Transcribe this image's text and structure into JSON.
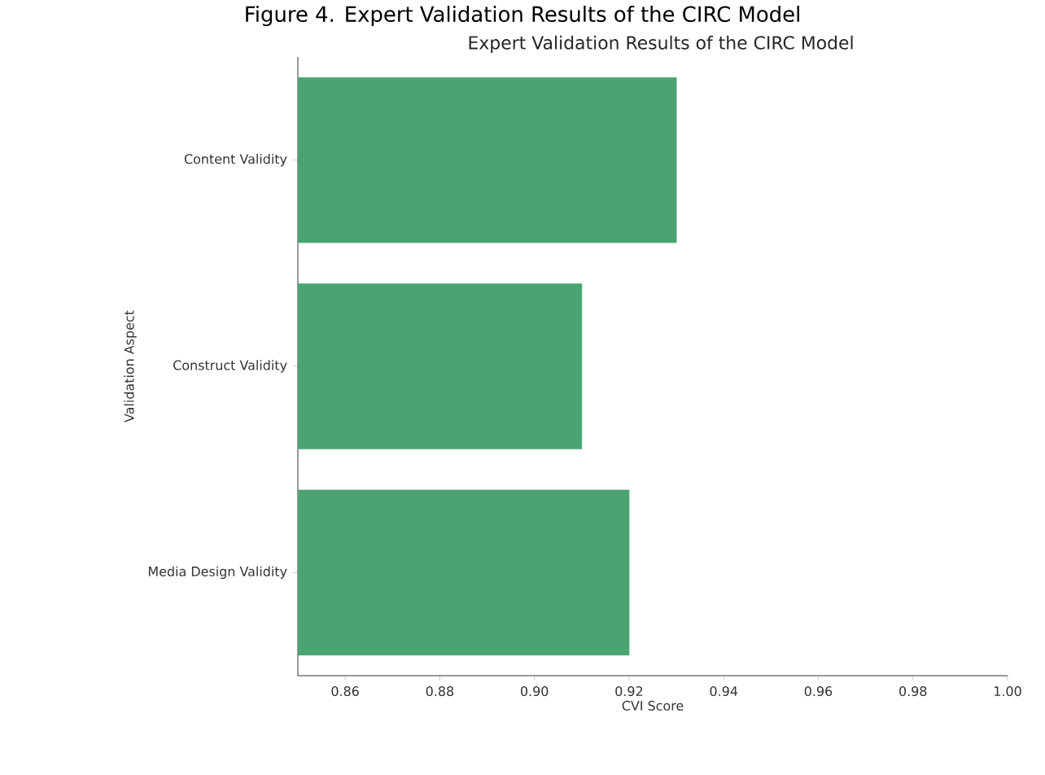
{
  "chart_data": {
    "type": "bar",
    "orientation": "horizontal",
    "title": "Figure 4. Expert Validation Results of the CIRC Model",
    "subtitle": "Expert Validation Results of the CIRC Model",
    "xlabel": "CVI Score",
    "ylabel": "Validation Aspect",
    "categories": [
      "Content Validity",
      "Construct Validity",
      "Media Design Validity"
    ],
    "values": [
      0.93,
      0.91,
      0.92
    ],
    "color": "#4aa472",
    "xlim": [
      0.85,
      1.0
    ],
    "xticks": [
      0.86,
      0.88,
      {
        "value": 0.9,
        "label": "0.90"
      },
      0.92,
      0.94,
      0.96,
      0.98,
      {
        "value": 1.0,
        "label": "1.00"
      }
    ]
  }
}
